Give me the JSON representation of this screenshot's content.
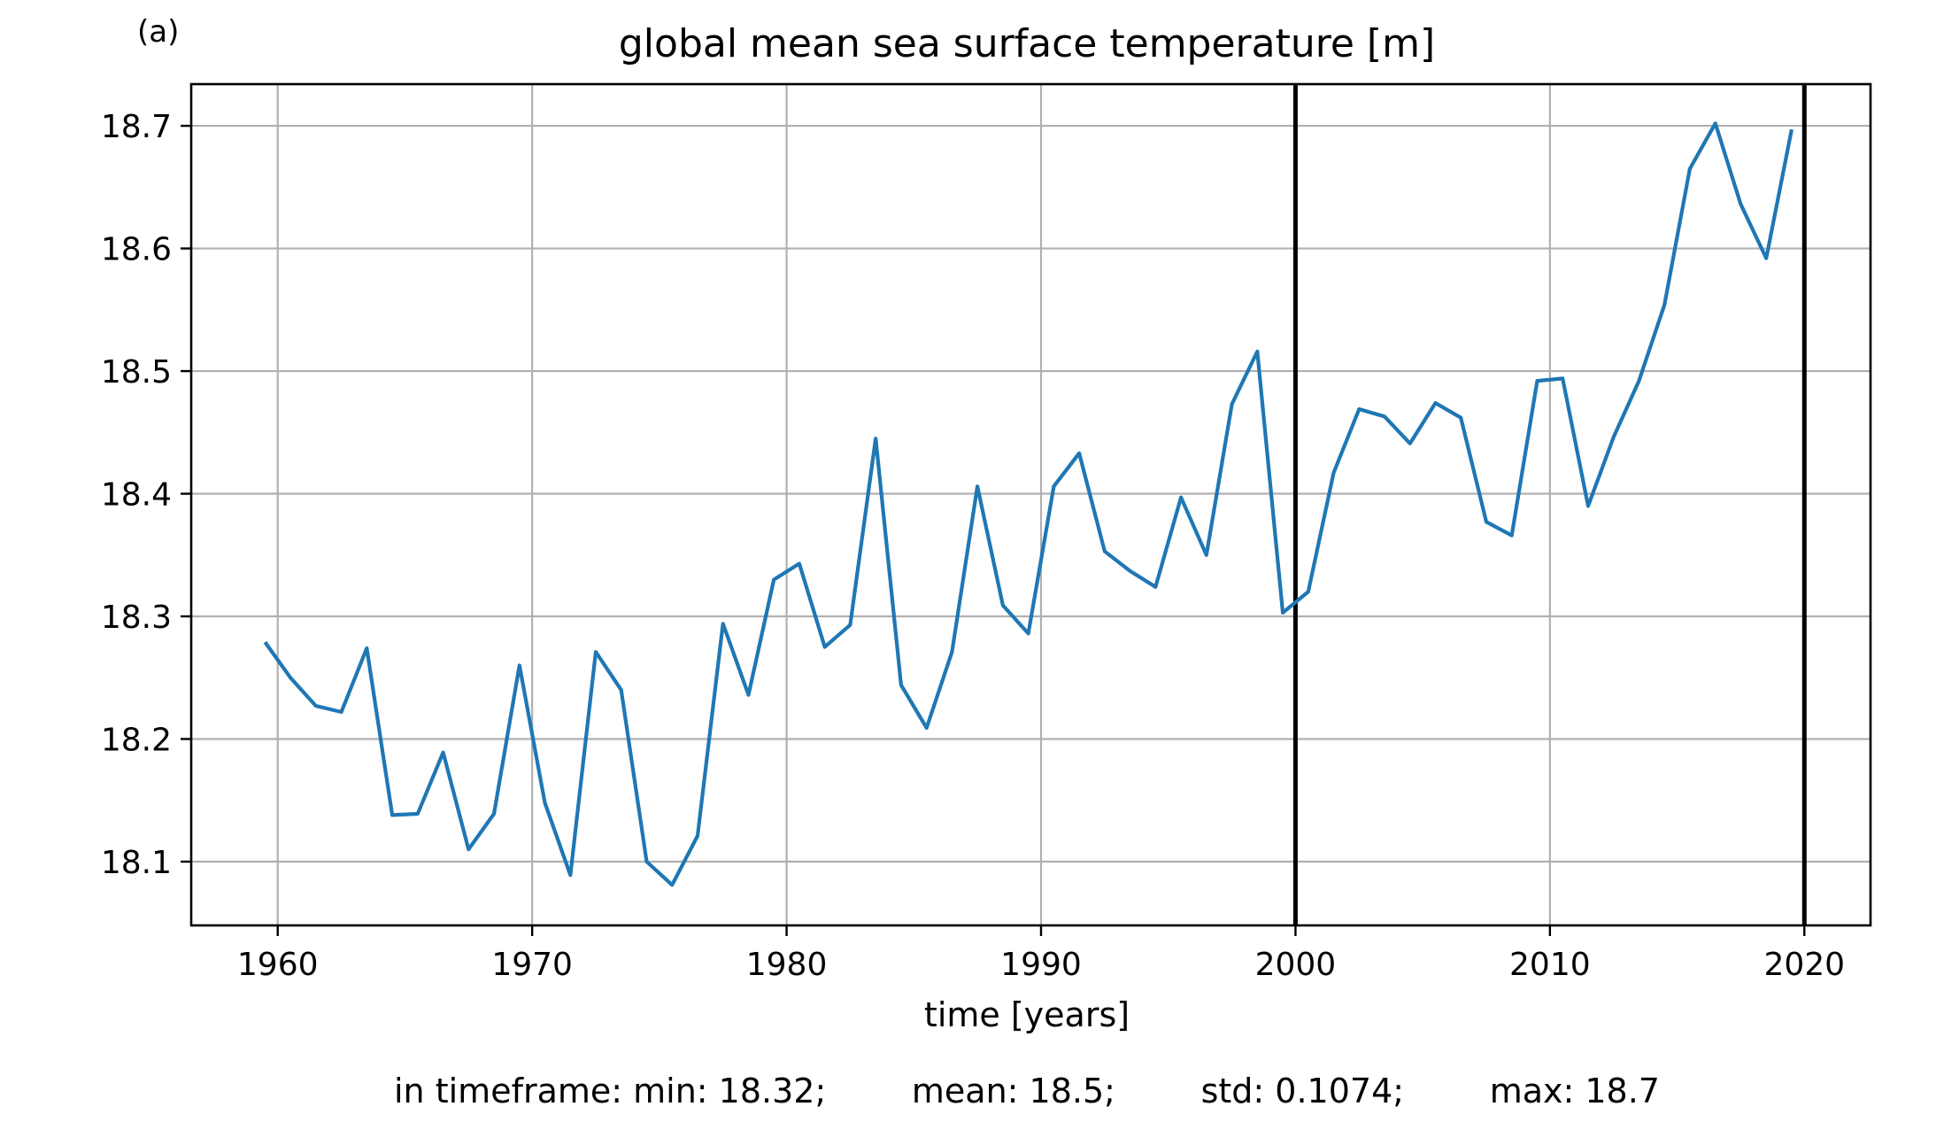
{
  "panel_label": "(a)",
  "stats_text": "in timeframe: min: 18.32;        mean: 18.5;        std: 0.1074;        max: 18.7",
  "colors": {
    "series": "#1f77b4",
    "grid": "#b0b0b0",
    "frame": "#000000",
    "marker_line": "#000000"
  },
  "chart_data": {
    "type": "line",
    "title": "global mean sea surface temperature [m]",
    "xlabel": "time [years]",
    "ylabel": "",
    "xlim": [
      1956.6,
      2022.6
    ],
    "ylim": [
      18.048,
      18.734
    ],
    "xticks": [
      1960,
      1970,
      1980,
      1990,
      2000,
      2010,
      2020
    ],
    "yticks": [
      18.1,
      18.2,
      18.3,
      18.4,
      18.5,
      18.6,
      18.7
    ],
    "xtick_labels": [
      "1960",
      "1970",
      "1980",
      "1990",
      "2000",
      "2010",
      "2020"
    ],
    "ytick_labels": [
      "18.1",
      "18.2",
      "18.3",
      "18.4",
      "18.5",
      "18.6",
      "18.7"
    ],
    "grid": true,
    "vertical_lines": [
      2000,
      2020
    ],
    "series": [
      {
        "x": [
          1959.5,
          1960.5,
          1961.5,
          1962.5,
          1963.5,
          1964.5,
          1965.5,
          1966.5,
          1967.5,
          1968.5,
          1969.5,
          1970.5,
          1971.5,
          1972.5,
          1973.5,
          1974.5,
          1975.5,
          1976.5,
          1977.5,
          1978.5,
          1979.5,
          1980.5,
          1981.5,
          1982.5,
          1983.5,
          1984.5,
          1985.5,
          1986.5,
          1987.5,
          1988.5,
          1989.5,
          1990.5,
          1991.5,
          1992.5,
          1993.5,
          1994.5,
          1995.5,
          1996.5,
          1997.5,
          1998.5,
          1999.5,
          2000.5,
          2001.5,
          2002.5,
          2003.5,
          2004.5,
          2005.5,
          2006.5,
          2007.5,
          2008.5,
          2009.5,
          2010.5,
          2011.5,
          2012.5,
          2013.5,
          2014.5,
          2015.5,
          2016.5,
          2017.5,
          2018.5,
          2019.5
        ],
        "values": [
          18.279,
          18.25,
          18.227,
          18.222,
          18.274,
          18.138,
          18.139,
          18.189,
          18.11,
          18.139,
          18.26,
          18.148,
          18.089,
          18.271,
          18.24,
          18.1,
          18.081,
          18.121,
          18.294,
          18.236,
          18.33,
          18.343,
          18.275,
          18.293,
          18.445,
          18.244,
          18.209,
          18.271,
          18.406,
          18.309,
          18.286,
          18.406,
          18.433,
          18.353,
          18.337,
          18.324,
          18.397,
          18.35,
          18.473,
          18.516,
          18.303,
          18.32,
          18.417,
          18.469,
          18.463,
          18.441,
          18.474,
          18.462,
          18.377,
          18.366,
          18.492,
          18.494,
          18.39,
          18.446,
          18.492,
          18.554,
          18.665,
          18.702,
          18.636,
          18.592,
          18.697
        ]
      }
    ]
  }
}
